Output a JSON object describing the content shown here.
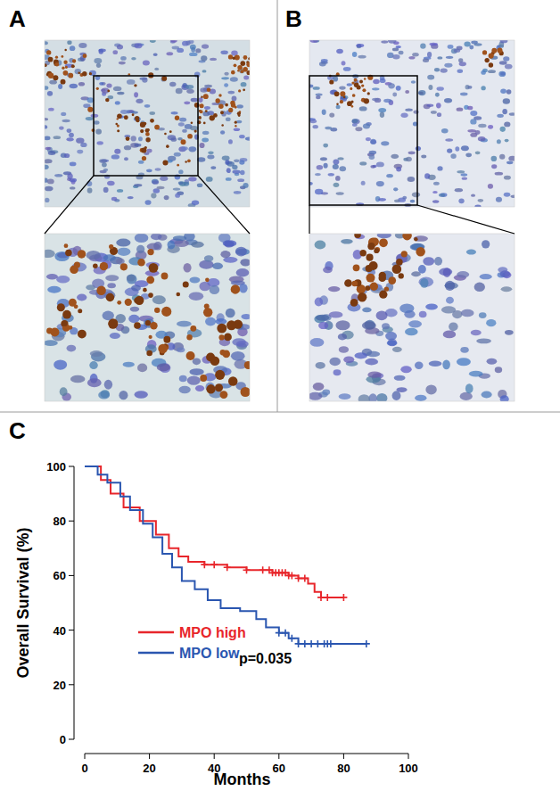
{
  "panels": [
    {
      "label": "A"
    },
    {
      "label": "B"
    },
    {
      "label": "C"
    }
  ],
  "chart_data": {
    "type": "line",
    "xlabel": "Months",
    "ylabel": "Overall Survival (%)",
    "xlim": [
      0,
      100
    ],
    "ylim": [
      0,
      100
    ],
    "xticks": [
      0,
      20,
      40,
      60,
      80,
      100
    ],
    "yticks": [
      0,
      20,
      40,
      60,
      80,
      100
    ],
    "grid": false,
    "legend": "lower left",
    "line_style": "step",
    "marker": "plus",
    "annotations": [
      {
        "text": "p=0.035"
      }
    ],
    "series": [
      {
        "name": "MPO high",
        "color": "#e8262b",
        "x": [
          0,
          5,
          8,
          12,
          17,
          22,
          26,
          29,
          32,
          37,
          44,
          50,
          58,
          63,
          66,
          69,
          71,
          73,
          80
        ],
        "values": [
          100,
          95,
          90,
          85,
          80,
          75,
          70,
          67,
          65,
          64,
          63,
          62,
          61,
          60,
          59,
          57,
          54,
          52,
          52
        ],
        "censor_x": [
          37,
          40,
          44,
          50,
          55,
          57,
          58,
          59,
          60,
          61,
          62,
          63,
          64,
          66,
          68,
          73,
          75,
          80
        ]
      },
      {
        "name": "MPO low",
        "color": "#2a56b0",
        "x": [
          0,
          4,
          7,
          11,
          14,
          18,
          21,
          24,
          27,
          30,
          34,
          38,
          42,
          48,
          53,
          56,
          60,
          63,
          66,
          87
        ],
        "values": [
          100,
          97,
          94,
          89,
          84,
          79,
          74,
          68,
          63,
          58,
          55,
          51,
          48,
          47,
          44,
          41,
          39,
          37,
          35,
          35
        ],
        "censor_x": [
          60,
          62,
          64,
          66,
          68,
          70,
          72,
          74,
          75,
          76,
          87
        ]
      }
    ]
  }
}
